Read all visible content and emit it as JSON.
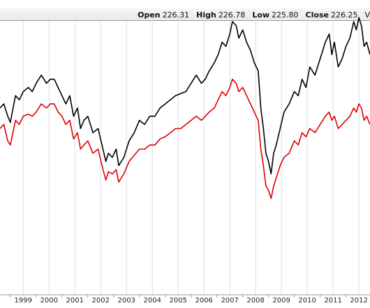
{
  "header": {
    "open_label": "Open",
    "open_value": "226.31",
    "high_label": "High",
    "high_value": "226.78",
    "low_label": "Low",
    "low_value": "225.80",
    "close_label": "Close",
    "close_value": "226.25",
    "trailing": "V"
  },
  "chart_data": {
    "type": "line",
    "x_ticks": [
      "1999",
      "2000",
      "2001",
      "2002",
      "2003",
      "2004",
      "2005",
      "2006",
      "2007",
      "2008",
      "2009",
      "2010",
      "2011",
      "2012"
    ],
    "xlim": [
      1998.6,
      2012.93
    ],
    "grid": true,
    "legend": "none",
    "series": [
      {
        "color": "#000000",
        "x": [
          1998.6,
          1998.75,
          1998.9,
          1999.0,
          1999.2,
          1999.35,
          1999.5,
          1999.7,
          1999.85,
          2000.0,
          2000.2,
          2000.4,
          2000.55,
          2000.7,
          2000.85,
          2001.0,
          2001.15,
          2001.3,
          2001.45,
          2001.6,
          2001.72,
          2001.85,
          2002.0,
          2002.2,
          2002.4,
          2002.55,
          2002.7,
          2002.8,
          2002.95,
          2003.1,
          2003.2,
          2003.4,
          2003.6,
          2003.8,
          2004.0,
          2004.2,
          2004.4,
          2004.6,
          2004.8,
          2005.0,
          2005.2,
          2005.4,
          2005.6,
          2005.8,
          2006.0,
          2006.2,
          2006.4,
          2006.55,
          2006.7,
          2006.9,
          2007.05,
          2007.2,
          2007.35,
          2007.5,
          2007.6,
          2007.75,
          2007.85,
          2008.0,
          2008.15,
          2008.3,
          2008.45,
          2008.6,
          2008.7,
          2008.8,
          2008.9,
          2009.0,
          2009.1,
          2009.2,
          2009.3,
          2009.45,
          2009.6,
          2009.8,
          2010.0,
          2010.15,
          2010.3,
          2010.45,
          2010.6,
          2010.8,
          2011.0,
          2011.2,
          2011.35,
          2011.45,
          2011.55,
          2011.7,
          2011.85,
          2012.0,
          2012.15,
          2012.3,
          2012.4,
          2012.5,
          2012.6,
          2012.7,
          2012.8,
          2012.93
        ],
        "y": [
          40,
          42,
          36,
          33,
          46,
          44,
          48,
          50,
          48,
          52,
          56,
          52,
          54,
          54,
          50,
          46,
          42,
          46,
          36,
          40,
          30,
          34,
          36,
          28,
          30,
          22,
          14,
          18,
          16,
          20,
          12,
          16,
          24,
          28,
          34,
          32,
          36,
          36,
          40,
          42,
          44,
          46,
          47,
          48,
          52,
          56,
          52,
          54,
          58,
          62,
          66,
          72,
          70,
          76,
          82,
          80,
          74,
          78,
          72,
          68,
          62,
          58,
          40,
          30,
          18,
          14,
          8,
          18,
          22,
          30,
          38,
          42,
          48,
          46,
          54,
          50,
          60,
          56,
          64,
          72,
          76,
          66,
          72,
          60,
          64,
          70,
          74,
          82,
          78,
          84,
          80,
          70,
          72,
          66
        ]
      },
      {
        "color": "#e00000",
        "x": [
          1998.6,
          1998.75,
          1998.9,
          1999.0,
          1999.2,
          1999.35,
          1999.5,
          1999.7,
          1999.85,
          2000.0,
          2000.2,
          2000.4,
          2000.55,
          2000.7,
          2000.85,
          2001.0,
          2001.15,
          2001.3,
          2001.45,
          2001.6,
          2001.72,
          2001.85,
          2002.0,
          2002.2,
          2002.4,
          2002.55,
          2002.7,
          2002.8,
          2002.95,
          2003.1,
          2003.2,
          2003.4,
          2003.6,
          2003.8,
          2004.0,
          2004.2,
          2004.4,
          2004.6,
          2004.8,
          2005.0,
          2005.2,
          2005.4,
          2005.6,
          2005.8,
          2006.0,
          2006.2,
          2006.4,
          2006.55,
          2006.7,
          2006.9,
          2007.05,
          2007.2,
          2007.35,
          2007.5,
          2007.6,
          2007.75,
          2007.85,
          2008.0,
          2008.15,
          2008.3,
          2008.45,
          2008.6,
          2008.7,
          2008.8,
          2008.9,
          2009.0,
          2009.1,
          2009.2,
          2009.3,
          2009.45,
          2009.6,
          2009.8,
          2010.0,
          2010.15,
          2010.3,
          2010.45,
          2010.6,
          2010.8,
          2011.0,
          2011.2,
          2011.35,
          2011.45,
          2011.55,
          2011.7,
          2011.85,
          2012.0,
          2012.15,
          2012.3,
          2012.4,
          2012.5,
          2012.6,
          2012.7,
          2012.8,
          2012.93
        ],
        "y": [
          30,
          32,
          24,
          22,
          34,
          32,
          36,
          37,
          36,
          38,
          42,
          40,
          42,
          42,
          38,
          36,
          32,
          34,
          25,
          28,
          20,
          22,
          24,
          18,
          20,
          12,
          5,
          9,
          8,
          10,
          4,
          8,
          14,
          17,
          20,
          20,
          22,
          22,
          25,
          26,
          28,
          30,
          30,
          32,
          34,
          36,
          34,
          36,
          38,
          40,
          44,
          48,
          46,
          50,
          54,
          52,
          48,
          50,
          46,
          42,
          38,
          34,
          20,
          12,
          2,
          0,
          -4,
          2,
          6,
          12,
          16,
          18,
          24,
          22,
          28,
          26,
          30,
          28,
          32,
          36,
          38,
          34,
          36,
          30,
          32,
          34,
          36,
          40,
          38,
          42,
          40,
          34,
          36,
          32
        ]
      }
    ]
  },
  "colors": {
    "grid": "#d4dcec",
    "axis": "#9a9a9a",
    "info_bar": "#ececec"
  }
}
